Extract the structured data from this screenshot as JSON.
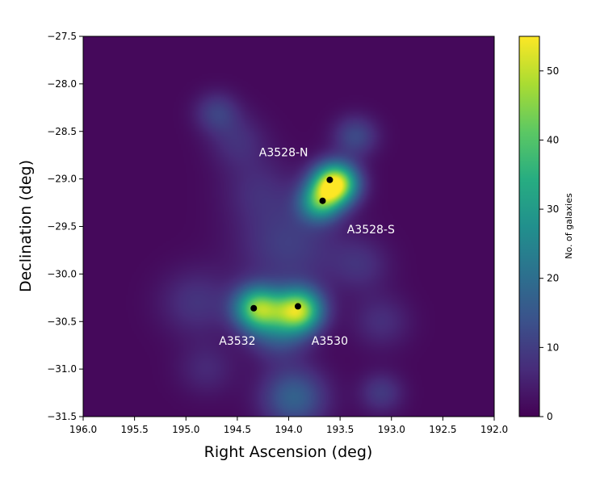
{
  "chart_data": {
    "type": "heatmap",
    "xlabel": "Right Ascension (deg)",
    "ylabel": "Declination (deg)",
    "xlim": [
      196.0,
      192.0
    ],
    "ylim": [
      -31.5,
      -27.5
    ],
    "x_ticks": [
      "196.0",
      "195.5",
      "195.0",
      "194.5",
      "194.0",
      "193.5",
      "193.0",
      "192.5",
      "192.0"
    ],
    "y_ticks": [
      "−27.5",
      "−28.0",
      "−28.5",
      "−29.0",
      "−29.5",
      "−30.0",
      "−30.5",
      "−31.0",
      "−31.5"
    ],
    "colorbar": {
      "label": "No. of galaxies",
      "range": [
        0,
        55
      ],
      "ticks": [
        "0",
        "10",
        "20",
        "30",
        "40",
        "50"
      ],
      "colormap": "viridis"
    },
    "density_peaks": [
      {
        "ra": 193.55,
        "dec": -29.05,
        "value": 55,
        "sigma": 0.15
      },
      {
        "ra": 193.7,
        "dec": -29.25,
        "value": 28,
        "sigma": 0.14
      },
      {
        "ra": 193.9,
        "dec": -30.38,
        "value": 44,
        "sigma": 0.16
      },
      {
        "ra": 194.3,
        "dec": -30.36,
        "value": 40,
        "sigma": 0.16
      },
      {
        "ra": 194.1,
        "dec": -30.6,
        "value": 14,
        "sigma": 0.2
      },
      {
        "ra": 193.95,
        "dec": -31.3,
        "value": 16,
        "sigma": 0.22
      },
      {
        "ra": 194.0,
        "dec": -29.7,
        "value": 9,
        "sigma": 0.35
      },
      {
        "ra": 193.35,
        "dec": -28.55,
        "value": 11,
        "sigma": 0.15
      },
      {
        "ra": 194.7,
        "dec": -28.3,
        "value": 9,
        "sigma": 0.15
      },
      {
        "ra": 194.5,
        "dec": -28.6,
        "value": 6,
        "sigma": 0.2
      },
      {
        "ra": 194.9,
        "dec": -30.3,
        "value": 7,
        "sigma": 0.25
      },
      {
        "ra": 193.1,
        "dec": -30.5,
        "value": 6,
        "sigma": 0.2
      },
      {
        "ra": 193.1,
        "dec": -31.25,
        "value": 8,
        "sigma": 0.15
      },
      {
        "ra": 194.8,
        "dec": -31.0,
        "value": 5,
        "sigma": 0.2
      },
      {
        "ra": 193.3,
        "dec": -29.9,
        "value": 6,
        "sigma": 0.2
      },
      {
        "ra": 194.3,
        "dec": -29.1,
        "value": 5,
        "sigma": 0.25
      }
    ],
    "clusters": [
      {
        "name": "A3528-N",
        "ra": 193.6,
        "dec": -29.01,
        "label_ra": 194.05,
        "label_dec": -28.72
      },
      {
        "name": "A3528-S",
        "ra": 193.67,
        "dec": -29.23,
        "label_ra": 193.2,
        "label_dec": -29.53
      },
      {
        "name": "A3532",
        "ra": 194.34,
        "dec": -30.36,
        "label_ra": 194.5,
        "label_dec": -30.7
      },
      {
        "name": "A3530",
        "ra": 193.91,
        "dec": -30.34,
        "label_ra": 193.6,
        "label_dec": -30.7
      }
    ]
  }
}
